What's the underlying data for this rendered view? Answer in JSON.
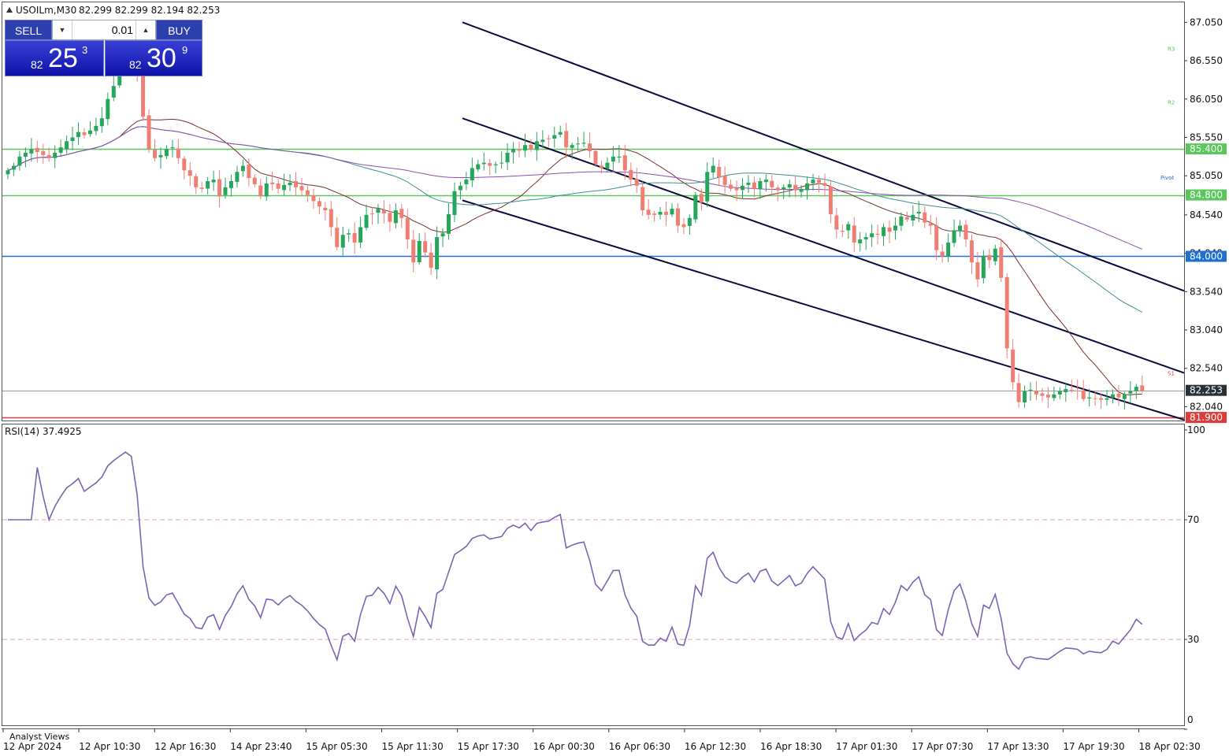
{
  "header": {
    "symbol_timeframe": "USOILm,M30",
    "ohlc": "82.299 82.299 82.194 82.253"
  },
  "trade_panel": {
    "sell_label": "SELL",
    "buy_label": "BUY",
    "lot": "0.01",
    "sell_price": {
      "small": "82",
      "big": "25",
      "sup": "3"
    },
    "buy_price": {
      "small": "82",
      "big": "30",
      "sup": "9"
    }
  },
  "colors": {
    "bull": "#26a65b",
    "bear": "#ef7f73",
    "channel": "#0b0b3b",
    "support_resistance": "#5ac75a",
    "blue_level": "#1f6fd1",
    "red_level": "#e03b3b",
    "ma_fast": "#7b2f2f",
    "ma_mid": "#3f8f8f",
    "ma_slow": "#8a4fb0",
    "rsi": "#7d62b3"
  },
  "chart_data": [
    {
      "type": "candlestick",
      "ylim": [
        81.87,
        87.3
      ],
      "yticks": [
        "87.050",
        "86.550",
        "86.050",
        "85.550",
        "85.050",
        "84.540",
        "84.040",
        "83.540",
        "83.040",
        "82.540",
        "82.040"
      ],
      "x_labels": [
        "12 Apr 2024",
        "12 Apr 10:30",
        "12 Apr 16:30",
        "14 Apr 23:40",
        "15 Apr 05:30",
        "15 Apr 11:30",
        "15 Apr 17:30",
        "16 Apr 00:30",
        "16 Apr 06:30",
        "16 Apr 12:30",
        "16 Apr 18:30",
        "17 Apr 01:30",
        "17 Apr 07:30",
        "17 Apr 13:30",
        "17 Apr 19:30",
        "18 Apr 02:30"
      ],
      "levels": [
        {
          "price": 85.4,
          "label": "85.400",
          "color": "#5ac75a"
        },
        {
          "price": 84.8,
          "label": "84.800",
          "color": "#5ac75a"
        },
        {
          "price": 84.0,
          "label": "84.000",
          "color": "#1f6fd1"
        },
        {
          "price": 81.9,
          "label": "81.900",
          "color": "#e03b3b"
        }
      ],
      "current_price": {
        "price": 82.253,
        "label": "82.253"
      },
      "pivot_labels": [
        "R3",
        "R2",
        "Pivot",
        "S1"
      ],
      "channel_lines": [
        {
          "x0": 0,
          "y0": 87.05,
          "x1": 1,
          "y1": 83.55
        },
        {
          "x0": 0,
          "y0": 85.8,
          "x1": 1,
          "y1": 82.48
        },
        {
          "x0": 0,
          "y0": 84.73,
          "x1": 1,
          "y1": 81.87
        }
      ],
      "closes": [
        85.12,
        85.18,
        85.3,
        85.35,
        85.4,
        85.36,
        85.32,
        85.28,
        85.35,
        85.42,
        85.5,
        85.55,
        85.62,
        85.58,
        85.64,
        85.7,
        85.8,
        86.05,
        86.22,
        86.4,
        86.62,
        86.6,
        86.4,
        85.82,
        85.4,
        85.28,
        85.32,
        85.4,
        85.42,
        85.28,
        85.12,
        85.05,
        84.9,
        84.88,
        84.98,
        85.0,
        84.78,
        84.9,
        84.98,
        85.1,
        85.18,
        85.02,
        84.94,
        84.78,
        84.95,
        84.94,
        84.88,
        84.93,
        84.96,
        84.9,
        84.86,
        84.8,
        84.72,
        84.65,
        84.6,
        84.38,
        84.12,
        84.28,
        84.3,
        84.18,
        84.38,
        84.54,
        84.55,
        84.62,
        84.56,
        84.45,
        84.6,
        84.5,
        84.22,
        83.92,
        84.2,
        84.05,
        83.85,
        84.25,
        84.3,
        84.55,
        84.85,
        84.92,
        85.0,
        85.15,
        85.2,
        85.22,
        85.18,
        85.2,
        85.22,
        85.35,
        85.4,
        85.38,
        85.45,
        85.4,
        85.5,
        85.52,
        85.53,
        85.58,
        85.62,
        85.42,
        85.45,
        85.47,
        85.48,
        85.37,
        85.2,
        85.15,
        85.22,
        85.3,
        85.3,
        85.12,
        85.0,
        84.92,
        84.6,
        84.54,
        84.54,
        84.58,
        84.54,
        84.62,
        84.4,
        84.38,
        84.5,
        84.8,
        84.7,
        85.1,
        85.18,
        85.03,
        84.93,
        84.88,
        84.86,
        84.92,
        84.96,
        84.88,
        84.98,
        85.0,
        84.9,
        84.86,
        84.9,
        84.94,
        84.86,
        84.88,
        84.95,
        85.0,
        84.96,
        84.92,
        84.55,
        84.35,
        84.32,
        84.42,
        84.18,
        84.22,
        84.25,
        84.3,
        84.28,
        84.38,
        84.32,
        84.4,
        84.52,
        84.48,
        84.54,
        84.58,
        84.44,
        84.4,
        84.08,
        84.0,
        84.18,
        84.34,
        84.4,
        84.22,
        83.92,
        83.7,
        84.0,
        83.95,
        84.1,
        83.72,
        82.8,
        82.36,
        82.1,
        82.24,
        82.26,
        82.2,
        82.18,
        82.16,
        82.2,
        82.24,
        82.27,
        82.26,
        82.24,
        82.14,
        82.16,
        82.14,
        82.13,
        82.15,
        82.2,
        82.16,
        82.2,
        82.24,
        82.3,
        82.25
      ],
      "overlay_lines": [
        {
          "name": "",
          "color": "#7b2f2f",
          "period": 20
        },
        {
          "name": "",
          "color": "#3f8f8f",
          "period": 50
        },
        {
          "name": "",
          "color": "#8a4fb0",
          "period": 100
        }
      ]
    },
    {
      "type": "line",
      "title": "RSI(14) 37.4925",
      "ylim": [
        0,
        100
      ],
      "yticks": [
        "100",
        "70",
        "30",
        "0"
      ],
      "reference_levels": [
        70,
        30
      ],
      "series": [
        {
          "name": "RSI(14)",
          "period": 14
        }
      ]
    }
  ],
  "footer": {
    "analyst_views": "Analyst Views"
  }
}
